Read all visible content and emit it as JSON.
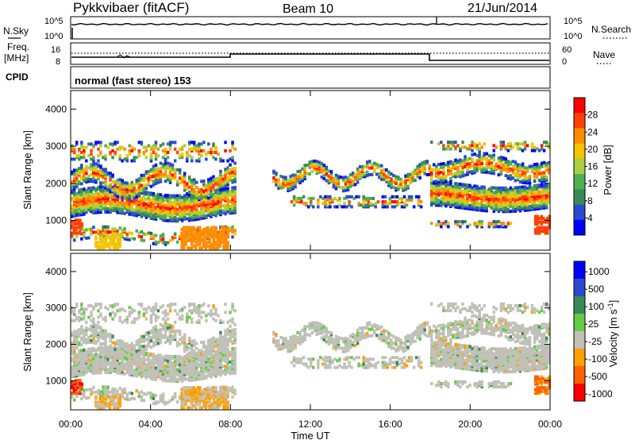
{
  "header": {
    "station": "Pykkvibaer (fitACF)",
    "beam": "Beam 10",
    "date": "21/Jun/2014"
  },
  "aux_panels": {
    "noise": {
      "left_label": "N.Sky",
      "right_label": "N.Search",
      "left_ticks": [
        "10^5",
        "10^0"
      ],
      "right_ticks": [
        "10^5",
        "10^0"
      ]
    },
    "freq": {
      "left_label_top": "Freq.",
      "left_label_bottom": "[MHz]",
      "right_label": "Nave",
      "left_ticks": [
        "16",
        "8"
      ],
      "right_ticks": [
        "60",
        "0"
      ]
    },
    "cpid": {
      "label": "CPID",
      "text": "normal (fast stereo) 153"
    }
  },
  "colors": {
    "power": [
      "#0000ff",
      "#2a4ad0",
      "#3a8a58",
      "#4fb04f",
      "#a8d040",
      "#f4c400",
      "#ff8c00",
      "#ff4000",
      "#ff0000"
    ],
    "velocity": [
      "#ff0000",
      "#ff6000",
      "#ffa000",
      "#c0c0b8",
      "#66cc44",
      "#3a8a58",
      "#2a4ad0",
      "#0000ff"
    ]
  },
  "chart_data": [
    {
      "type": "heatmap",
      "title": "",
      "xlabel": "Time UT",
      "ylabel": "Slant Range [km]",
      "x_ticks": [
        "00:00",
        "04:00",
        "08:00",
        "12:00",
        "16:00",
        "20:00",
        "00:00"
      ],
      "y_ticks": [
        1000,
        2000,
        3000,
        4000
      ],
      "ylim": [
        200,
        4500
      ],
      "xlim_hours": [
        0,
        24
      ],
      "colorbar": {
        "label": "Power [dB]",
        "ticks": [
          4,
          8,
          12,
          16,
          20,
          24,
          28
        ],
        "range": [
          0,
          32
        ]
      }
    },
    {
      "type": "heatmap",
      "title": "",
      "xlabel": "Time UT",
      "ylabel": "Slant Range [km]",
      "x_ticks": [
        "00:00",
        "04:00",
        "08:00",
        "12:00",
        "16:00",
        "20:00",
        "00:00"
      ],
      "y_ticks": [
        1000,
        2000,
        3000,
        4000
      ],
      "ylim": [
        200,
        4500
      ],
      "xlim_hours": [
        0,
        24
      ],
      "colorbar": {
        "label": "Velocity [m s",
        "label_sup": "-1",
        "label_end": "]",
        "ticks": [
          "1000",
          "500",
          "100",
          "25",
          "-25",
          "-100",
          "-500",
          "-1000"
        ]
      }
    }
  ]
}
